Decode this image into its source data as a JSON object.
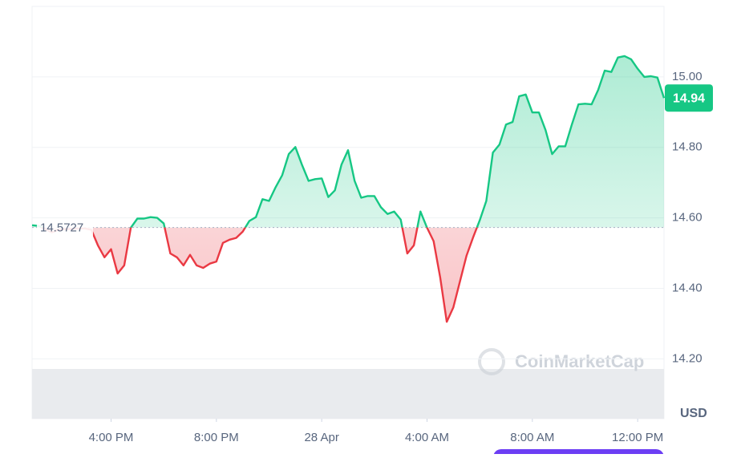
{
  "chart_data": {
    "type": "line",
    "x": [
      13,
      13.25,
      13.5,
      13.75,
      14,
      14.25,
      14.5,
      14.75,
      15,
      15.25,
      15.5,
      15.75,
      16,
      16.25,
      16.5,
      16.75,
      17,
      17.25,
      17.5,
      17.75,
      18,
      18.25,
      18.5,
      18.75,
      19,
      19.25,
      19.5,
      19.75,
      20,
      20.25,
      20.5,
      20.75,
      21,
      21.25,
      21.5,
      21.75,
      22,
      22.25,
      22.5,
      22.75,
      23,
      23.25,
      23.5,
      23.75,
      24,
      24.25,
      24.5,
      24.75,
      25,
      25.25,
      25.5,
      25.75,
      26,
      26.25,
      26.5,
      26.75,
      27,
      27.25,
      27.5,
      27.75,
      28,
      28.25,
      28.5,
      28.75,
      29,
      29.25,
      29.5,
      29.75,
      30,
      30.25,
      30.5,
      30.75,
      31,
      31.25,
      31.5,
      31.75,
      32,
      32.25,
      32.5,
      32.75,
      33,
      33.25,
      33.5,
      33.75,
      34,
      34.25,
      34.5,
      34.75,
      35,
      35.25,
      35.5,
      35.75,
      36,
      36.25,
      36.5,
      36.75,
      37
    ],
    "values": [
      14.579,
      14.577,
      14.568,
      14.559,
      14.566,
      14.568,
      14.568,
      14.57,
      14.57,
      14.566,
      14.522,
      14.488,
      14.511,
      14.442,
      14.465,
      14.572,
      14.598,
      14.598,
      14.602,
      14.6,
      14.584,
      14.499,
      14.488,
      14.465,
      14.495,
      14.465,
      14.458,
      14.47,
      14.476,
      14.529,
      14.538,
      14.543,
      14.561,
      14.591,
      14.602,
      14.653,
      14.648,
      14.687,
      14.721,
      14.781,
      14.801,
      14.751,
      14.705,
      14.71,
      14.712,
      14.659,
      14.678,
      14.751,
      14.792,
      14.705,
      14.657,
      14.662,
      14.662,
      14.63,
      14.611,
      14.618,
      14.595,
      14.499,
      14.522,
      14.618,
      14.572,
      14.534,
      14.431,
      14.305,
      14.346,
      14.419,
      14.493,
      14.545,
      14.593,
      14.648,
      14.785,
      14.808,
      14.865,
      14.872,
      14.945,
      14.95,
      14.899,
      14.899,
      14.849,
      14.781,
      14.803,
      14.803,
      14.865,
      14.922,
      14.924,
      14.922,
      14.963,
      15.018,
      15.014,
      15.055,
      15.059,
      15.05,
      15.023,
      15.0,
      15.002,
      14.998,
      14.94
    ],
    "xlim": [
      13,
      37
    ],
    "xticks": [
      {
        "value": 16,
        "label": "4:00 PM"
      },
      {
        "value": 20,
        "label": "8:00 PM"
      },
      {
        "value": 24,
        "label": "28 Apr"
      },
      {
        "value": 28,
        "label": "4:00 AM"
      },
      {
        "value": 32,
        "label": "8:00 AM"
      },
      {
        "value": 36,
        "label": "12:00 PM"
      }
    ],
    "ylim": [
      14.03,
      15.2
    ],
    "yticks": [
      {
        "value": 14.2,
        "label": "14.20"
      },
      {
        "value": 14.4,
        "label": "14.40"
      },
      {
        "value": 14.6,
        "label": "14.60"
      },
      {
        "value": 14.8,
        "label": "14.80"
      },
      {
        "value": 15.0,
        "label": "15.00"
      }
    ],
    "baseline": 14.5727,
    "last_price": 14.94,
    "currency": "USD",
    "watermark": "CoinMarketCap",
    "up_color": "#16c784",
    "down_color": "#ea3943",
    "grid": true
  }
}
